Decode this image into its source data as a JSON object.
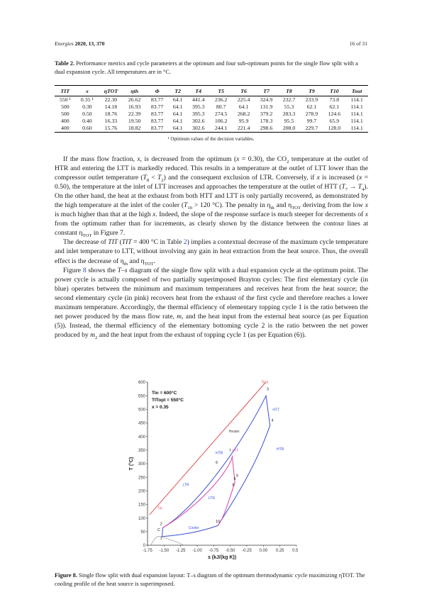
{
  "header": {
    "journal": "Energies",
    "volume": "2020, 13, 370",
    "page": "16 of 31"
  },
  "table": {
    "caption_label": "Table 2.",
    "caption_text": "Performance metrics and cycle parameters at the optimum and four sub-optimum points for the single flow split with a dual expansion cycle. All temperatures are in °C.",
    "headers": [
      "TIT",
      "x",
      "ηTOT",
      "ηth",
      "Φ",
      "T2",
      "T4",
      "T5",
      "T6",
      "T7",
      "T8",
      "T9",
      "T10",
      "Tout"
    ],
    "rows": [
      [
        "550 ¹",
        "0.35 ¹",
        "22.30",
        "26.62",
        "83.77",
        "64.1",
        "441.4",
        "236.2",
        "225.4",
        "324.9",
        "232.7",
        "233.9",
        "73.8",
        "114.1"
      ],
      [
        "500",
        "0.30",
        "14.18",
        "16.93",
        "83.77",
        "64.1",
        "395.3",
        "80.7",
        "64.1",
        "131.9",
        "55.3",
        "62.1",
        "62.1",
        "114.1"
      ],
      [
        "500",
        "0.50",
        "18.76",
        "22.39",
        "83.77",
        "64.1",
        "395.3",
        "274.5",
        "268.2",
        "379.2",
        "283.3",
        "278.9",
        "124.6",
        "114.1"
      ],
      [
        "400",
        "0.40",
        "16.33",
        "19.50",
        "83.77",
        "64.1",
        "302.6",
        "106.2",
        "95.9",
        "178.3",
        "95.5",
        "99.7",
        "65.9",
        "114.1"
      ],
      [
        "400",
        "0.60",
        "15.76",
        "18.82",
        "83.77",
        "64.1",
        "302.6",
        "244.1",
        "221.4",
        "298.6",
        "208.0",
        "229.7",
        "128.0",
        "114.1"
      ]
    ],
    "footnote": "¹ Optimum values of the decision variables."
  },
  "figure": {
    "caption_label": "Figure 8.",
    "caption_text": "Single flow split with dual expansion layout: T–s diagram of the optimum thermodynamic cycle maximizing ηTOT. The cooling profile of the heat source is superimposed.",
    "plot": {
      "ylabel": "T (°C)",
      "xlabel": "s (kJ/(kg K))",
      "yticks": [
        "0",
        "50",
        "100",
        "150",
        "200",
        "250",
        "300",
        "350",
        "400",
        "450",
        "500",
        "550",
        "600"
      ],
      "xticks": [
        "-1.75",
        "-1.50",
        "-1.25",
        "-1.00",
        "-0.75",
        "-0.50",
        "-0.25",
        "0.00",
        "0.25",
        "0.50"
      ],
      "legend": [
        "Tin = 600°C",
        "TITopt = 550°C",
        "x = 0.35"
      ],
      "labels": [
        "Heater",
        "HTT",
        "HTR",
        "HTR",
        "LTT",
        "LTR",
        "LTR",
        "Cooler",
        "Tin",
        "Tout"
      ],
      "points": [
        "1",
        "2",
        "3",
        "4",
        "5",
        "6",
        "7",
        "8",
        "9",
        "10",
        "C"
      ],
      "colors": {
        "axes": "#333333",
        "cycle_blue": "#3a4fd6",
        "cycle_pink": "#e040a8",
        "heat_source": "#e05050"
      }
    }
  }
}
